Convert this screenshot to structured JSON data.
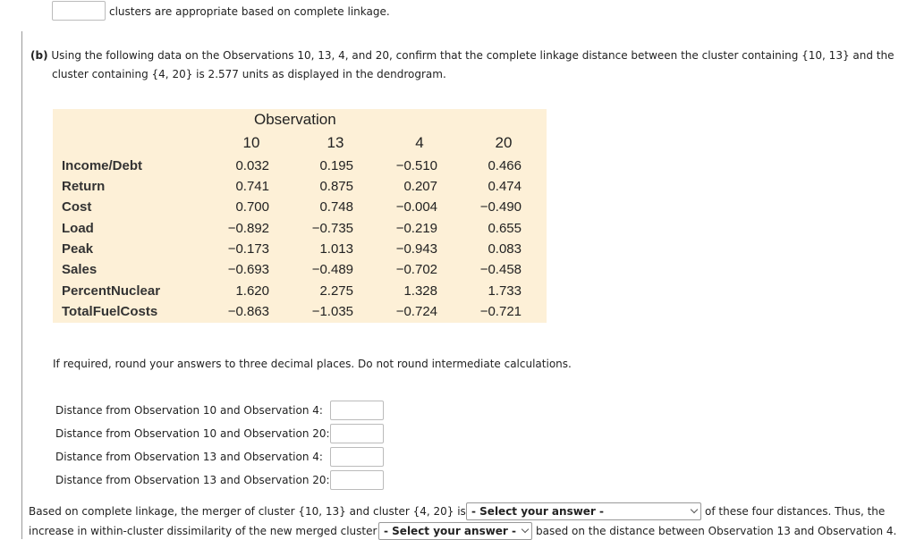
{
  "top_line": "clusters are appropriate based on complete linkage.",
  "part_b": {
    "label": "(b)",
    "line1": "Using the following data on the Observations 10, 13, 4, and 20, confirm that the complete linkage distance between the cluster containing {10, 13} and the",
    "line2": "cluster containing {4, 20} is 2.577 units as displayed in the dendrogram."
  },
  "table": {
    "group_header": "Observation",
    "columns": [
      "10",
      "13",
      "4",
      "20"
    ],
    "rows": [
      {
        "label": "Income/Debt",
        "values": [
          "0.032",
          "0.195",
          "−0.510",
          "0.466"
        ]
      },
      {
        "label": "Return",
        "values": [
          "0.741",
          "0.875",
          "0.207",
          "0.474"
        ]
      },
      {
        "label": "Cost",
        "values": [
          "0.700",
          "0.748",
          "−0.004",
          "−0.490"
        ]
      },
      {
        "label": "Load",
        "values": [
          "−0.892",
          "−0.735",
          "−0.219",
          "0.655"
        ]
      },
      {
        "label": "Peak",
        "values": [
          "−0.173",
          "1.013",
          "−0.943",
          "0.083"
        ]
      },
      {
        "label": "Sales",
        "values": [
          "−0.693",
          "−0.489",
          "−0.702",
          "−0.458"
        ]
      },
      {
        "label": "PercentNuclear",
        "values": [
          "1.620",
          "2.275",
          "1.328",
          "1.733"
        ]
      },
      {
        "label": "TotalFuelCosts",
        "values": [
          "−0.863",
          "−1.035",
          "−0.724",
          "−0.721"
        ]
      }
    ]
  },
  "instruction": "If required, round your answers to three decimal places. Do not round intermediate calculations.",
  "distances": [
    "Distance from Observation 10 and Observation 4:",
    "Distance from Observation 10 and Observation 20:",
    "Distance from Observation 13 and Observation 4:",
    "Distance from Observation 13 and Observation 20:"
  ],
  "conclusion": {
    "line1_before": "Based on complete linkage, the merger of cluster {10, 13} and cluster {4, 20} is",
    "select1": "- Select your answer -",
    "line1_after": "of these four distances. Thus, the",
    "line2_before": "increase in within-cluster dissimilarity of the new merged cluster",
    "select2": "- Select your answer -",
    "line2_after": "based on the distance between Observation 13 and Observation 4."
  }
}
